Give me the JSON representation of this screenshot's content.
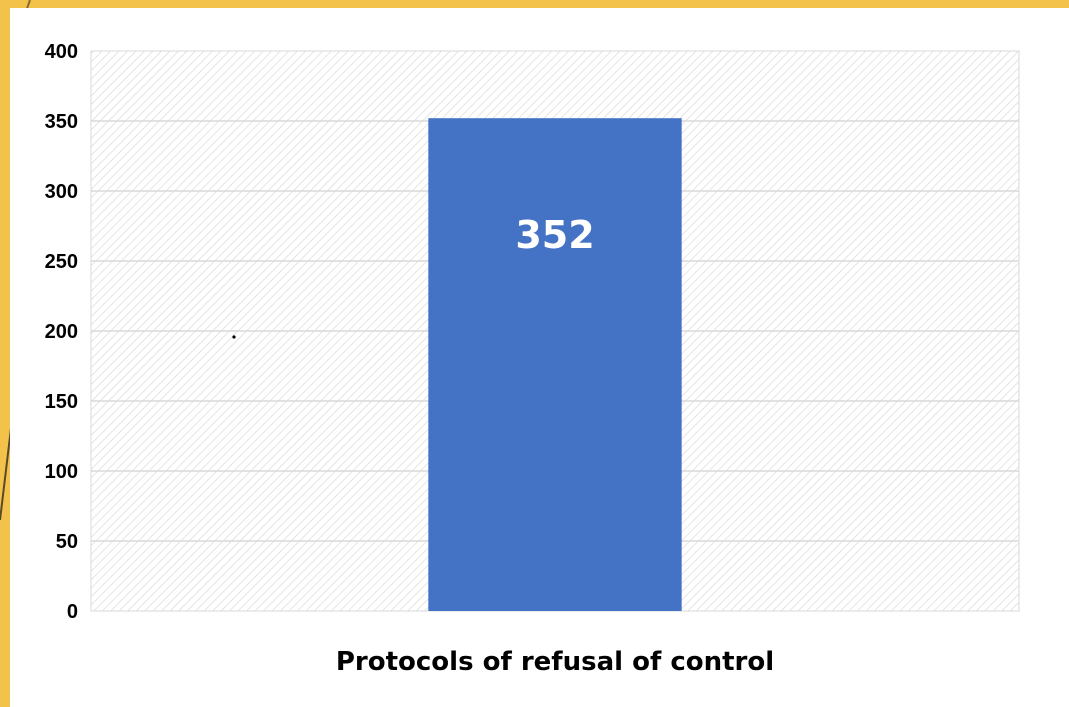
{
  "chart_data": {
    "type": "bar",
    "categories": [
      "Protocols of refusal of control"
    ],
    "values": [
      352
    ],
    "data_labels": [
      "352"
    ],
    "title": "",
    "xlabel": "",
    "ylabel": "",
    "ylim": [
      0,
      400
    ],
    "yticks": [
      "0",
      "50",
      "100",
      "150",
      "200",
      "250",
      "300",
      "350",
      "400"
    ],
    "grid": true,
    "legend": "none",
    "colors": {
      "bar": "#4472c4",
      "gridline": "#d9d9d9",
      "plot_hatch": "#d6d6d6",
      "background_accent": "#f2c24a"
    }
  }
}
